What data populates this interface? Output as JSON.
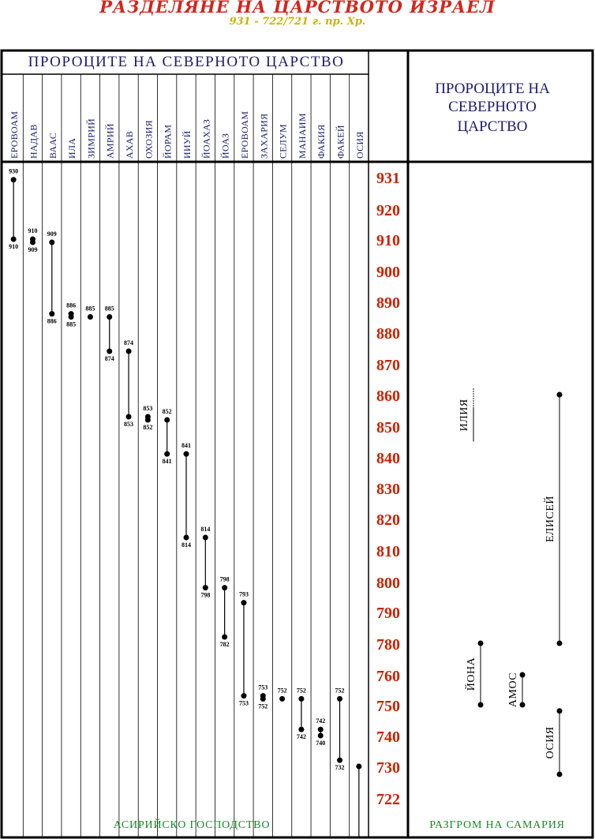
{
  "title": "РАЗДЕЛЯНЕ НА ЦАРСТВОТО ИЗРАЕЛ",
  "subtitle": "931 - 722/721 г. пр. Хр.",
  "kings_header": "ПРОРОЦИТЕ НА СЕВЕРНОТО ЦАРСТВО",
  "prophets_header": [
    "ПРОРОЦИТЕ НА",
    "СЕВЕРНОТО",
    "ЦАРСТВО"
  ],
  "footer_left": "АСИРИЙСКО ГОСПОДСТВО",
  "footer_right": "РАЗГРОМ НА САМАРИЯ",
  "colors": {
    "border": "#000000",
    "header_text": "#1c1c6e",
    "year_text": "#cc2200",
    "footer_text": "#1a8a2a",
    "title": "#d4241c",
    "subtitle": "#c8b400"
  },
  "chart_data": {
    "type": "timeline",
    "years": [
      931,
      920,
      910,
      900,
      890,
      880,
      870,
      860,
      850,
      840,
      830,
      820,
      810,
      800,
      790,
      780,
      760,
      750,
      740,
      730,
      722
    ],
    "kings": [
      {
        "name": "ЕРОВОАМ",
        "start": 930,
        "end": 910,
        "start_label": "930",
        "end_label": "910"
      },
      {
        "name": "НАДАВ",
        "start": 910,
        "end": 909,
        "start_label": "910",
        "end_label": "909"
      },
      {
        "name": "ВААС",
        "start": 909,
        "end": 886,
        "start_label": "909",
        "end_label": "886"
      },
      {
        "name": "ИЛА",
        "start": 886,
        "end": 885,
        "start_label": "886",
        "end_label": "885"
      },
      {
        "name": "ЗИМРИЙ",
        "start": 885,
        "end": 885,
        "start_label": "885",
        "end_label": ""
      },
      {
        "name": "АМРИЙ",
        "start": 885,
        "end": 874,
        "start_label": "885",
        "end_label": "874"
      },
      {
        "name": "АХАВ",
        "start": 874,
        "end": 853,
        "start_label": "874",
        "end_label": "853"
      },
      {
        "name": "ОХОЗИЯ",
        "start": 853,
        "end": 852,
        "start_label": "853",
        "end_label": "852"
      },
      {
        "name": "ЙОРАМ",
        "start": 852,
        "end": 841,
        "start_label": "852",
        "end_label": "841"
      },
      {
        "name": "ИИУЙ",
        "start": 841,
        "end": 814,
        "start_label": "841",
        "end_label": "814"
      },
      {
        "name": "ЙОАХАЗ",
        "start": 814,
        "end": 798,
        "start_label": "814",
        "end_label": "798"
      },
      {
        "name": "ЙОАЗ",
        "start": 798,
        "end": 782,
        "start_label": "798",
        "end_label": "782"
      },
      {
        "name": "ЕРОВОАМ",
        "start": 793,
        "end": 753,
        "start_label": "793",
        "end_label": "753"
      },
      {
        "name": "ЗАХАРИЯ",
        "start": 753,
        "end": 752,
        "start_label": "753",
        "end_label": "752"
      },
      {
        "name": "СЕЛУМ",
        "start": 752,
        "end": 752,
        "start_label": "752",
        "end_label": ""
      },
      {
        "name": "МАНАИМ",
        "start": 752,
        "end": 742,
        "start_label": "752",
        "end_label": "742"
      },
      {
        "name": "ФАКИЯ",
        "start": 742,
        "end": 740,
        "start_label": "742",
        "end_label": "740"
      },
      {
        "name": "ФАКЕЙ",
        "start": 752,
        "end": 732,
        "start_label": "752",
        "end_label": "732"
      },
      {
        "name": "ОСИЯ",
        "start": 730,
        "end": null,
        "start_label": "",
        "end_label": ""
      }
    ],
    "prophets": [
      {
        "name": "ИЛИЯ",
        "start": 862,
        "end": 845,
        "dots": false,
        "dotted_start": true
      },
      {
        "name": "ЕЛИСЕЙ",
        "start": 860,
        "end": 780,
        "dots": true,
        "dotted_start": false
      },
      {
        "name": "ЙОНА",
        "start": 780,
        "end": 750,
        "dots": true,
        "dotted_start": false
      },
      {
        "name": "АМОС",
        "start": 760,
        "end": 750,
        "dots": true,
        "dotted_start": false
      },
      {
        "name": "ОСИЯ",
        "start": 748,
        "end": 728,
        "dots": true,
        "dotted_start": false
      }
    ]
  }
}
